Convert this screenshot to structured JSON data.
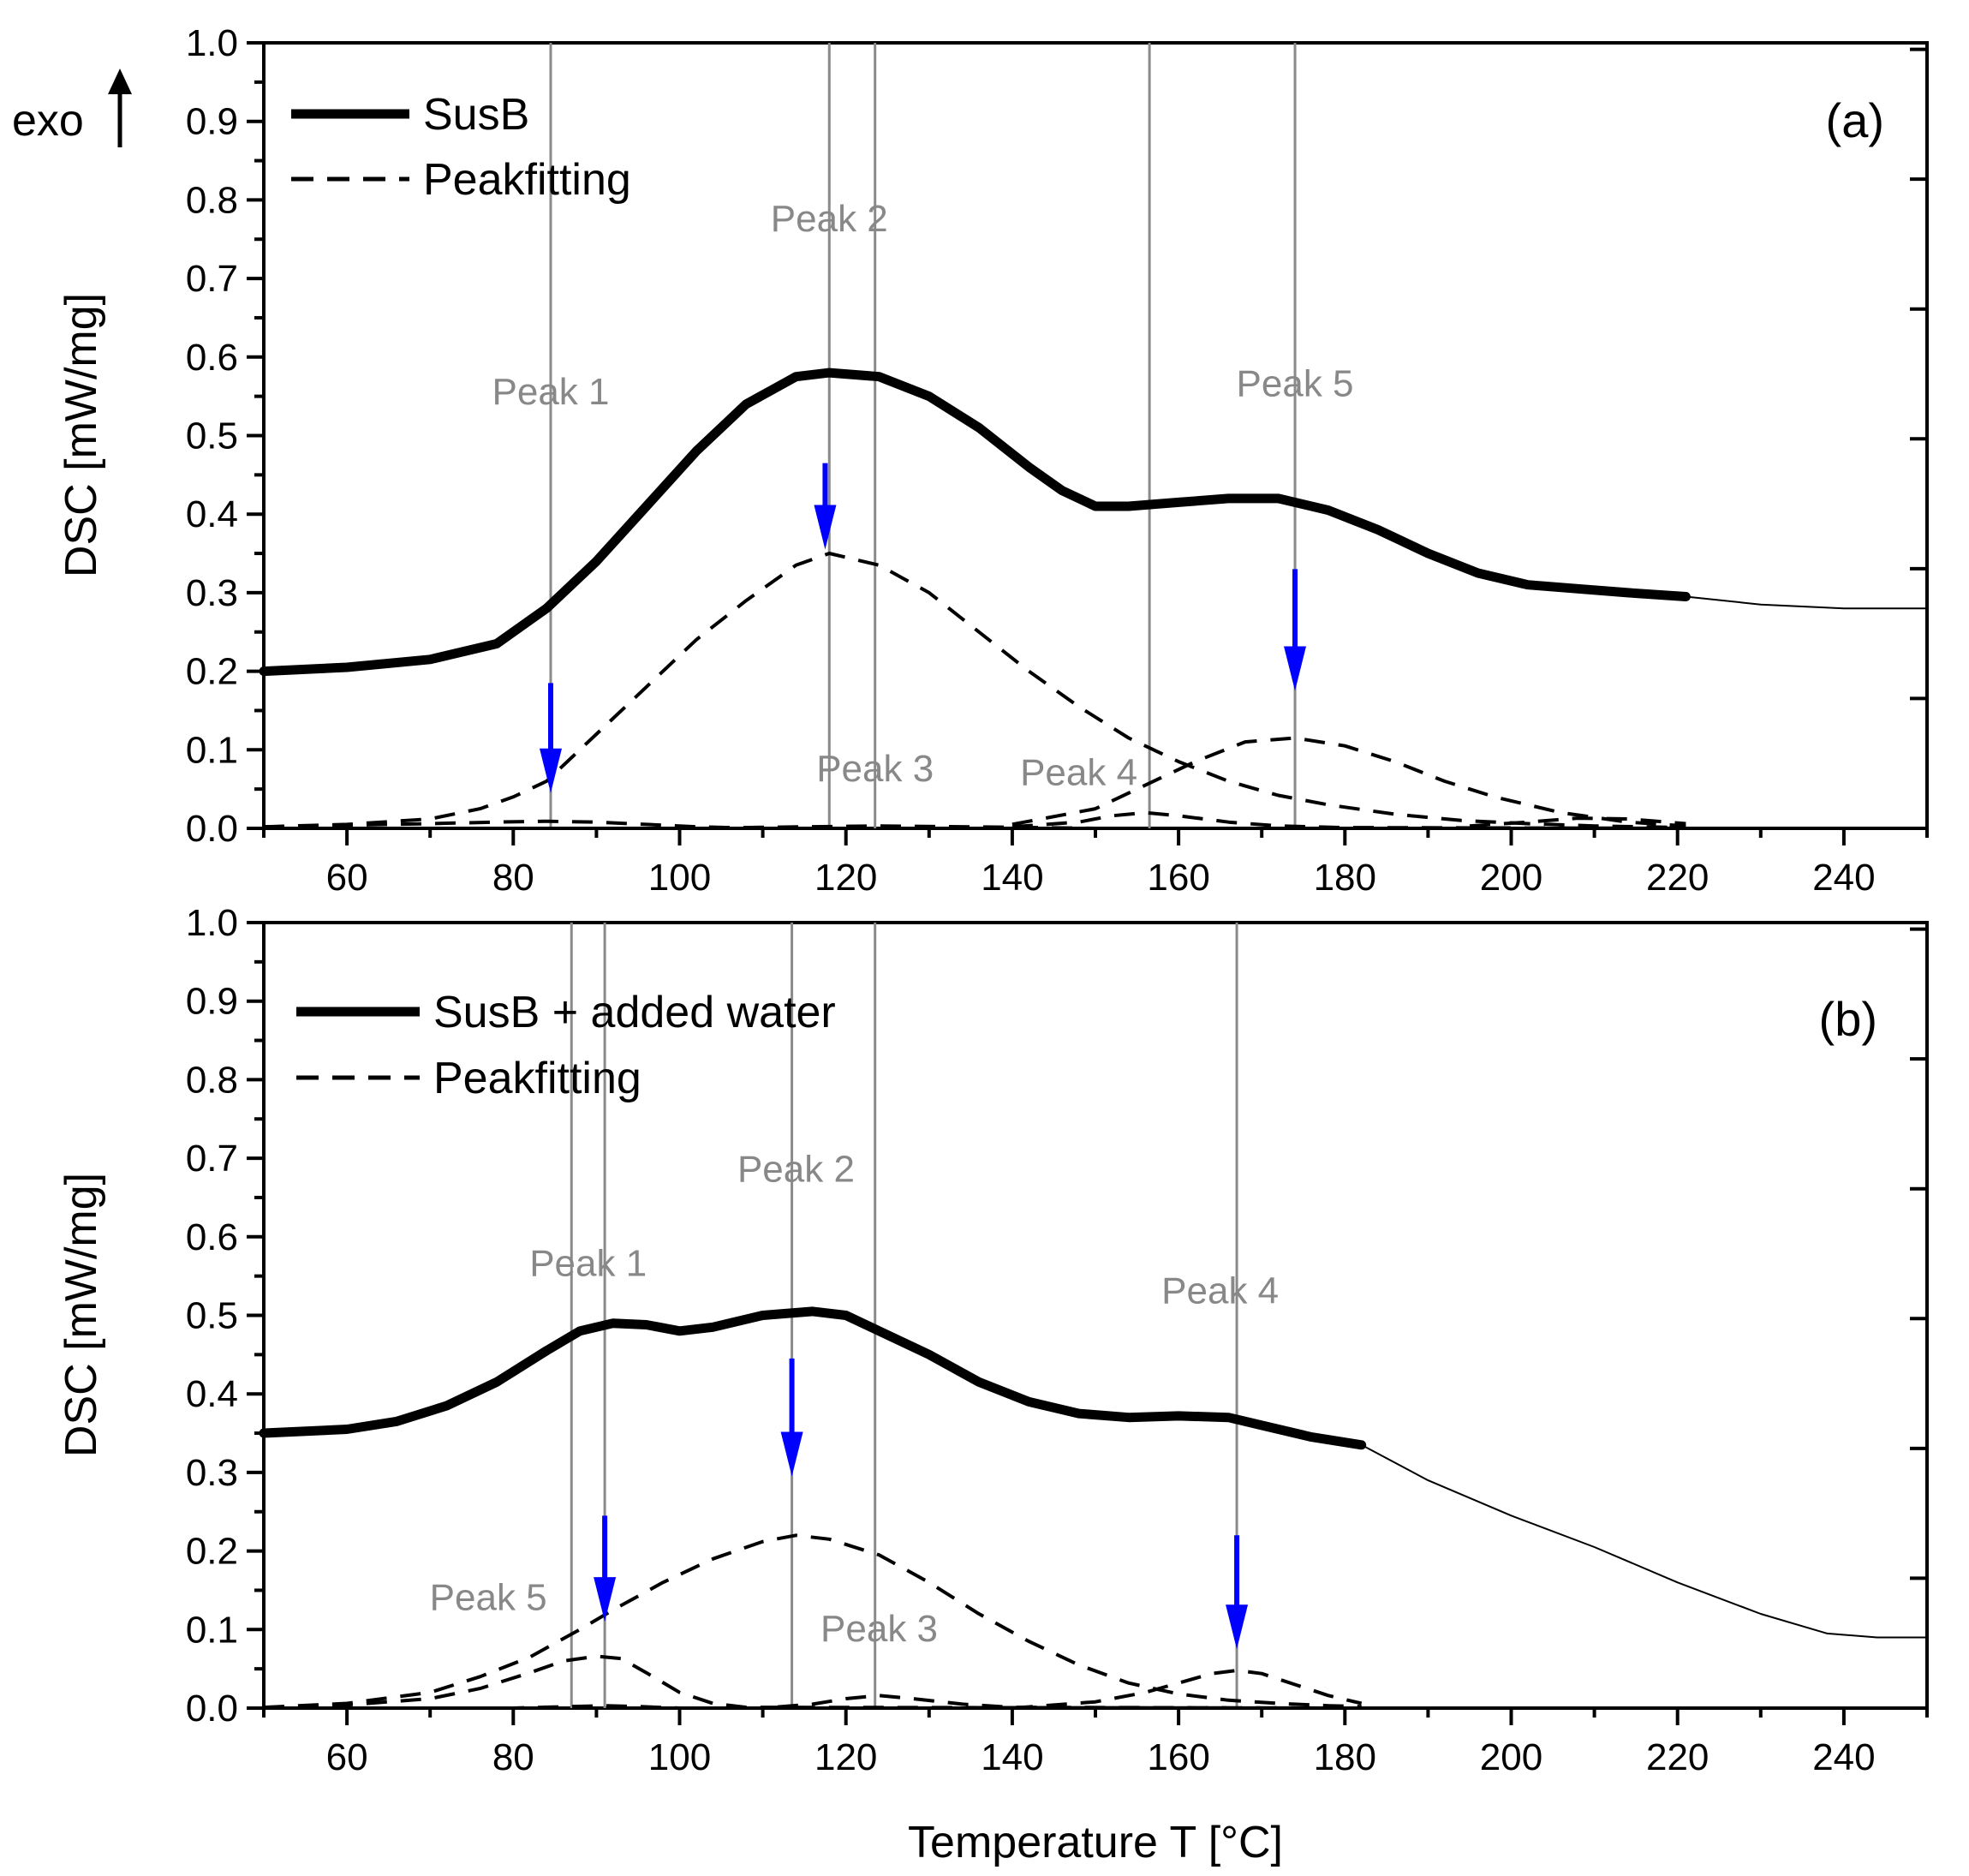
{
  "chart_data": [
    {
      "type": "line",
      "panel_label": "(a)",
      "ylabel": "DSC [mW/mg]",
      "xlabel": "",
      "exo_label": "exo",
      "xlim": [
        50,
        250
      ],
      "ylim": [
        0.0,
        1.0
      ],
      "xticks": [
        "60",
        "80",
        "100",
        "120",
        "140",
        "160",
        "180",
        "200",
        "220",
        "240"
      ],
      "yticks": [
        "0.0",
        "0.1",
        "0.2",
        "0.3",
        "0.4",
        "0.5",
        "0.6",
        "0.7",
        "0.8",
        "0.9",
        "1.0"
      ],
      "legend": {
        "position": "top-left",
        "entries": [
          "SusB",
          "Peakfitting"
        ]
      },
      "series": [
        {
          "name": "SusB",
          "style": "thick-solid",
          "x": [
            50,
            60,
            70,
            78,
            84,
            90,
            96,
            102,
            108,
            114,
            118,
            124,
            130,
            136,
            142,
            146,
            150,
            154,
            160,
            166,
            172,
            178,
            184,
            190,
            196,
            202,
            208,
            214,
            221
          ],
          "y": [
            0.2,
            0.205,
            0.215,
            0.235,
            0.28,
            0.34,
            0.41,
            0.48,
            0.54,
            0.575,
            0.58,
            0.575,
            0.55,
            0.51,
            0.46,
            0.43,
            0.41,
            0.41,
            0.415,
            0.42,
            0.42,
            0.405,
            0.38,
            0.35,
            0.325,
            0.31,
            0.305,
            0.3,
            0.295
          ]
        },
        {
          "name": "SusB (continued)",
          "style": "thin-solid",
          "x": [
            221,
            230,
            240,
            250
          ],
          "y": [
            0.295,
            0.285,
            0.28,
            0.28
          ]
        },
        {
          "name": "Peakfitting peak 2",
          "style": "dashed",
          "x": [
            50,
            60,
            70,
            76,
            80,
            84,
            90,
            96,
            102,
            108,
            114,
            118,
            124,
            130,
            136,
            142,
            148,
            154,
            160,
            166,
            172,
            178,
            186,
            194,
            202,
            210,
            221
          ],
          "y": [
            0.002,
            0.005,
            0.012,
            0.025,
            0.04,
            0.06,
            0.12,
            0.18,
            0.24,
            0.29,
            0.335,
            0.35,
            0.335,
            0.3,
            0.25,
            0.2,
            0.155,
            0.115,
            0.085,
            0.06,
            0.042,
            0.03,
            0.018,
            0.01,
            0.006,
            0.003,
            0.001
          ]
        },
        {
          "name": "Peakfitting peak 5",
          "style": "dashed",
          "x": [
            140,
            150,
            156,
            162,
            168,
            174,
            180,
            186,
            192,
            198,
            206,
            214,
            221
          ],
          "y": [
            0.005,
            0.025,
            0.055,
            0.085,
            0.11,
            0.115,
            0.105,
            0.085,
            0.06,
            0.04,
            0.02,
            0.008,
            0.003
          ]
        },
        {
          "name": "Peakfitting peak 4",
          "style": "dashed",
          "x": [
            140,
            148,
            152,
            156,
            160,
            166,
            172,
            180,
            221
          ],
          "y": [
            0.002,
            0.008,
            0.016,
            0.02,
            0.016,
            0.008,
            0.003,
            0.001,
            0.0
          ]
        },
        {
          "name": "Peakfitting peak 3",
          "style": "dashed",
          "x": [
            50,
            100,
            115,
            124,
            135,
            150,
            221
          ],
          "y": [
            0.0,
            0.0,
            0.002,
            0.003,
            0.002,
            0.0,
            0.0
          ]
        },
        {
          "name": "Peakfitting peak 1",
          "style": "dashed",
          "x": [
            50,
            60,
            70,
            78,
            84,
            90,
            96,
            102,
            110,
            221
          ],
          "y": [
            0.002,
            0.004,
            0.006,
            0.008,
            0.009,
            0.008,
            0.005,
            0.002,
            0.0,
            0.0
          ]
        },
        {
          "name": "Peakfitting tail",
          "style": "dashed",
          "x": [
            195,
            202,
            208,
            214,
            221
          ],
          "y": [
            0.003,
            0.008,
            0.013,
            0.012,
            0.006
          ]
        }
      ],
      "vertical_lines": [
        84.5,
        118,
        123.5,
        156.5,
        174
      ],
      "peak_labels": [
        {
          "text": "Peak 1",
          "x": 84.5,
          "y": 0.54
        },
        {
          "text": "Peak 2",
          "x": 118,
          "y": 0.76
        },
        {
          "text": "Peak 3",
          "x": 123.5,
          "y": 0.06
        },
        {
          "text": "Peak 4",
          "x": 148,
          "y": 0.055
        },
        {
          "text": "Peak 5",
          "x": 174,
          "y": 0.55
        }
      ],
      "arrows": [
        {
          "x": 84.5,
          "y_start": 0.185,
          "y_end": 0.045
        },
        {
          "x": 117.5,
          "y_start": 0.465,
          "y_end": 0.355
        },
        {
          "x": 174,
          "y_start": 0.33,
          "y_end": 0.175
        }
      ]
    },
    {
      "type": "line",
      "panel_label": "(b)",
      "ylabel": "DSC [mW/mg]",
      "xlabel": "Temperature T [°C]",
      "xlim": [
        50,
        250
      ],
      "ylim": [
        0.0,
        1.0
      ],
      "xticks": [
        "60",
        "80",
        "100",
        "120",
        "140",
        "160",
        "180",
        "200",
        "220",
        "240"
      ],
      "yticks": [
        "0.0",
        "0.1",
        "0.2",
        "0.3",
        "0.4",
        "0.5",
        "0.6",
        "0.7",
        "0.8",
        "0.9",
        "1.0"
      ],
      "legend": {
        "position": "top-left",
        "entries": [
          "SusB + added water",
          "Peakfitting"
        ]
      },
      "series": [
        {
          "name": "SusB + added water",
          "style": "thick-solid",
          "x": [
            50,
            60,
            66,
            72,
            78,
            84,
            88,
            92,
            96,
            100,
            104,
            110,
            116,
            120,
            124,
            130,
            136,
            142,
            148,
            154,
            160,
            166,
            170,
            176,
            182
          ],
          "y": [
            0.35,
            0.355,
            0.365,
            0.385,
            0.415,
            0.455,
            0.48,
            0.49,
            0.488,
            0.48,
            0.485,
            0.5,
            0.505,
            0.5,
            0.48,
            0.45,
            0.415,
            0.39,
            0.375,
            0.37,
            0.372,
            0.37,
            0.36,
            0.345,
            0.335
          ]
        },
        {
          "name": "SusB + added water (continued)",
          "style": "thin-solid",
          "x": [
            182,
            190,
            200,
            210,
            220,
            230,
            238,
            244,
            250
          ],
          "y": [
            0.335,
            0.29,
            0.245,
            0.205,
            0.16,
            0.12,
            0.095,
            0.09,
            0.09
          ]
        },
        {
          "name": "Peakfitting peak 2",
          "style": "dashed",
          "x": [
            50,
            60,
            70,
            76,
            82,
            88,
            92,
            98,
            104,
            110,
            114,
            118,
            124,
            130,
            136,
            142,
            148,
            154,
            160,
            166,
            172,
            178,
            182
          ],
          "y": [
            0.001,
            0.006,
            0.02,
            0.04,
            0.065,
            0.1,
            0.125,
            0.16,
            0.19,
            0.212,
            0.22,
            0.215,
            0.195,
            0.16,
            0.12,
            0.085,
            0.055,
            0.032,
            0.018,
            0.01,
            0.006,
            0.003,
            0.002
          ]
        },
        {
          "name": "Peakfitting peak 5",
          "style": "dashed",
          "x": [
            50,
            60,
            70,
            76,
            82,
            86,
            90,
            93,
            96,
            100,
            104,
            108,
            182
          ],
          "y": [
            0.0,
            0.004,
            0.012,
            0.025,
            0.045,
            0.06,
            0.066,
            0.063,
            0.045,
            0.02,
            0.006,
            0.001,
            0.0
          ]
        },
        {
          "name": "Peakfitting peak 4",
          "style": "dashed",
          "x": [
            140,
            150,
            156,
            160,
            164,
            167,
            170,
            174,
            178,
            182
          ],
          "y": [
            0.0,
            0.008,
            0.02,
            0.032,
            0.044,
            0.048,
            0.044,
            0.03,
            0.016,
            0.006
          ]
        },
        {
          "name": "Peakfitting peak 3",
          "style": "dashed",
          "x": [
            50,
            110,
            116,
            120,
            124,
            128,
            134,
            140,
            182
          ],
          "y": [
            0.0,
            0.0,
            0.005,
            0.012,
            0.016,
            0.012,
            0.005,
            0.001,
            0.0
          ]
        },
        {
          "name": "Peakfitting peak 1",
          "style": "dashed",
          "x": [
            50,
            80,
            87,
            91,
            95,
            100,
            182
          ],
          "y": [
            0.0,
            0.0,
            0.002,
            0.003,
            0.002,
            0.0,
            0.0
          ]
        }
      ],
      "vertical_lines": [
        87,
        91,
        113.5,
        123.5,
        167
      ],
      "peak_labels": [
        {
          "text": "Peak 1",
          "x": 89,
          "y": 0.55
        },
        {
          "text": "Peak 2",
          "x": 114,
          "y": 0.67
        },
        {
          "text": "Peak 3",
          "x": 124,
          "y": 0.085
        },
        {
          "text": "Peak 4",
          "x": 165,
          "y": 0.515
        },
        {
          "text": "Peak 5",
          "x": 77,
          "y": 0.125
        }
      ],
      "arrows": [
        {
          "x": 91,
          "y_start": 0.245,
          "y_end": 0.11
        },
        {
          "x": 113.5,
          "y_start": 0.445,
          "y_end": 0.295
        },
        {
          "x": 167,
          "y_start": 0.22,
          "y_end": 0.075
        }
      ]
    }
  ]
}
